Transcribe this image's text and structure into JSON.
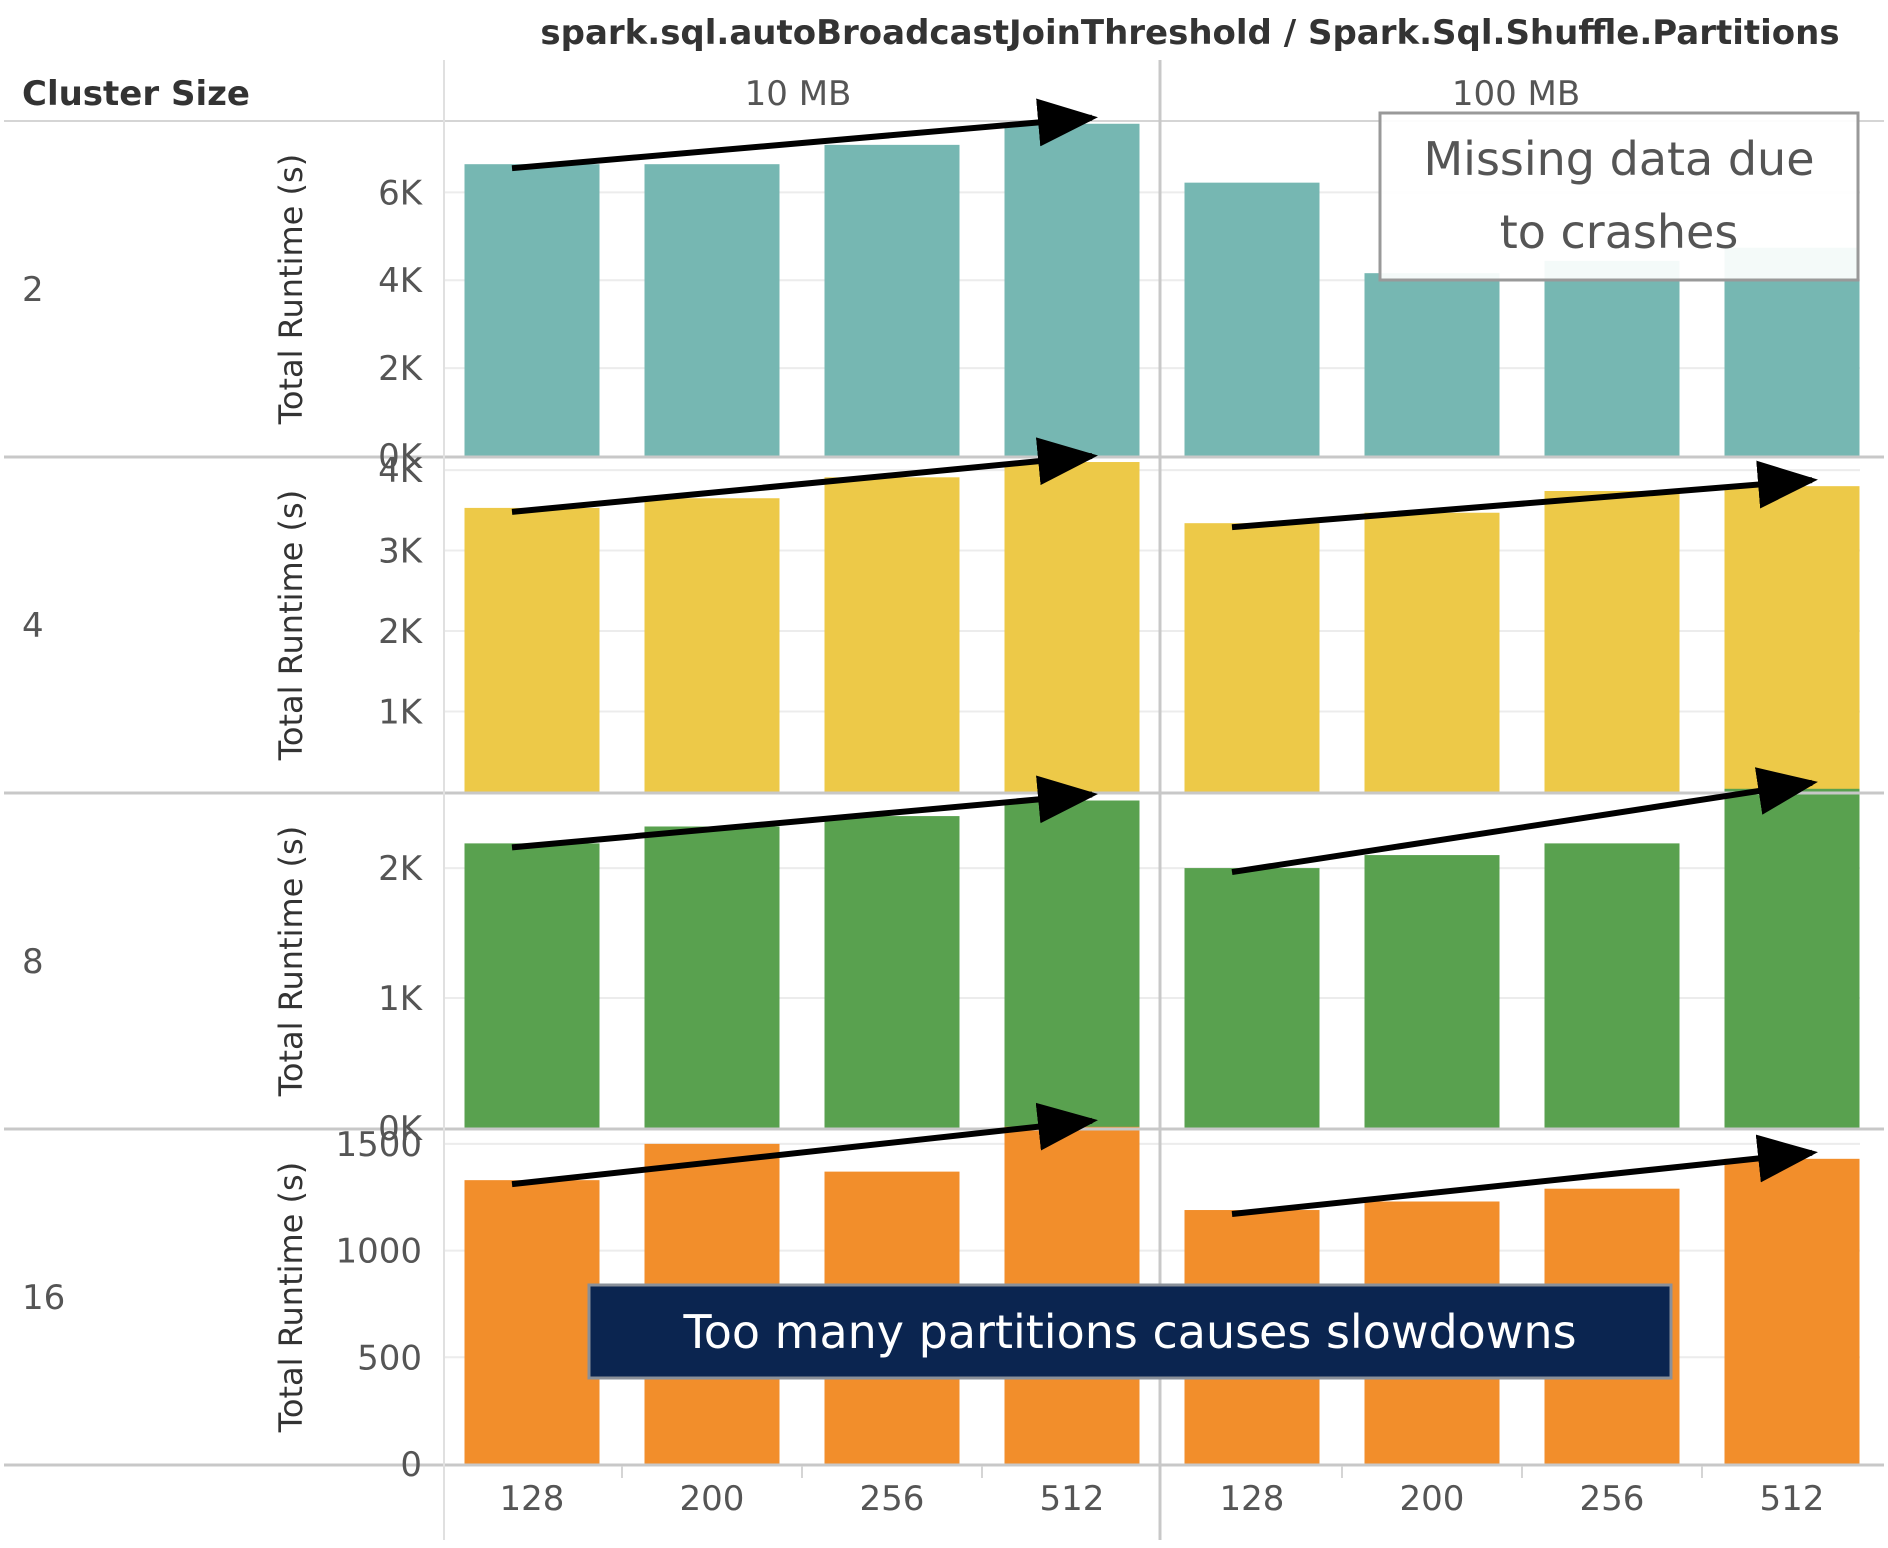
{
  "chart_data": {
    "type": "bar",
    "title": "spark.sql.autoBroadcastJoinThreshold / Spark.Sql.Shuffle.Partitions",
    "row_header": "Cluster Size",
    "ylabel": "Total Runtime (s)",
    "columns": [
      "10 MB",
      "100 MB"
    ],
    "categories": [
      "128",
      "200",
      "256",
      "512"
    ],
    "rows": [
      {
        "cluster_size": "2",
        "color": "#76B7B2",
        "ylim": [
          0,
          7600
        ],
        "ticks": [
          0,
          2000,
          4000,
          6000
        ],
        "tick_labels": [
          "0K",
          "2K",
          "4K",
          "6K"
        ],
        "panels": [
          {
            "values": [
              6640,
              6640,
              7080,
              7560
            ],
            "trend_arrow": true
          },
          {
            "values": [
              6220,
              4160,
              4440,
              4740
            ],
            "trend_arrow": false
          }
        ]
      },
      {
        "cluster_size": "4",
        "color": "#EDC948",
        "ylim": [
          0,
          4150
        ],
        "ticks": [
          1000,
          2000,
          3000,
          4000
        ],
        "tick_labels": [
          "1K",
          "2K",
          "3K",
          "4K"
        ],
        "panels": [
          {
            "values": [
              3530,
              3650,
              3910,
              4100
            ],
            "trend_arrow": true
          },
          {
            "values": [
              3340,
              3470,
              3740,
              3800
            ],
            "trend_arrow": true
          }
        ]
      },
      {
        "cluster_size": "8",
        "color": "#59A14F",
        "ylim": [
          0,
          2570
        ],
        "ticks": [
          0,
          1000,
          2000
        ],
        "tick_labels": [
          "0K",
          "1K",
          "2K"
        ],
        "panels": [
          {
            "values": [
              2190,
              2320,
              2400,
              2520
            ],
            "trend_arrow": true
          },
          {
            "values": [
              2000,
              2100,
              2190,
              2610
            ],
            "trend_arrow": true
          }
        ]
      },
      {
        "cluster_size": "16",
        "color": "#F28E2B",
        "ylim": [
          0,
          1565
        ],
        "ticks": [
          0,
          500,
          1000,
          1500
        ],
        "tick_labels": [
          "0",
          "500",
          "1000",
          "1500"
        ],
        "panels": [
          {
            "values": [
              1330,
              1500,
              1370,
              1580
            ],
            "trend_arrow": true
          },
          {
            "values": [
              1190,
              1230,
              1290,
              1430
            ],
            "trend_arrow": true
          }
        ]
      }
    ],
    "annotations": [
      {
        "text": "Missing data due to crashes",
        "lines": [
          "Missing data due",
          "to crashes"
        ],
        "style": "outlined-box"
      },
      {
        "text": "Too many partitions causes slowdowns",
        "style": "dark-navy-banner"
      }
    ],
    "grid": true,
    "legend": "none"
  }
}
